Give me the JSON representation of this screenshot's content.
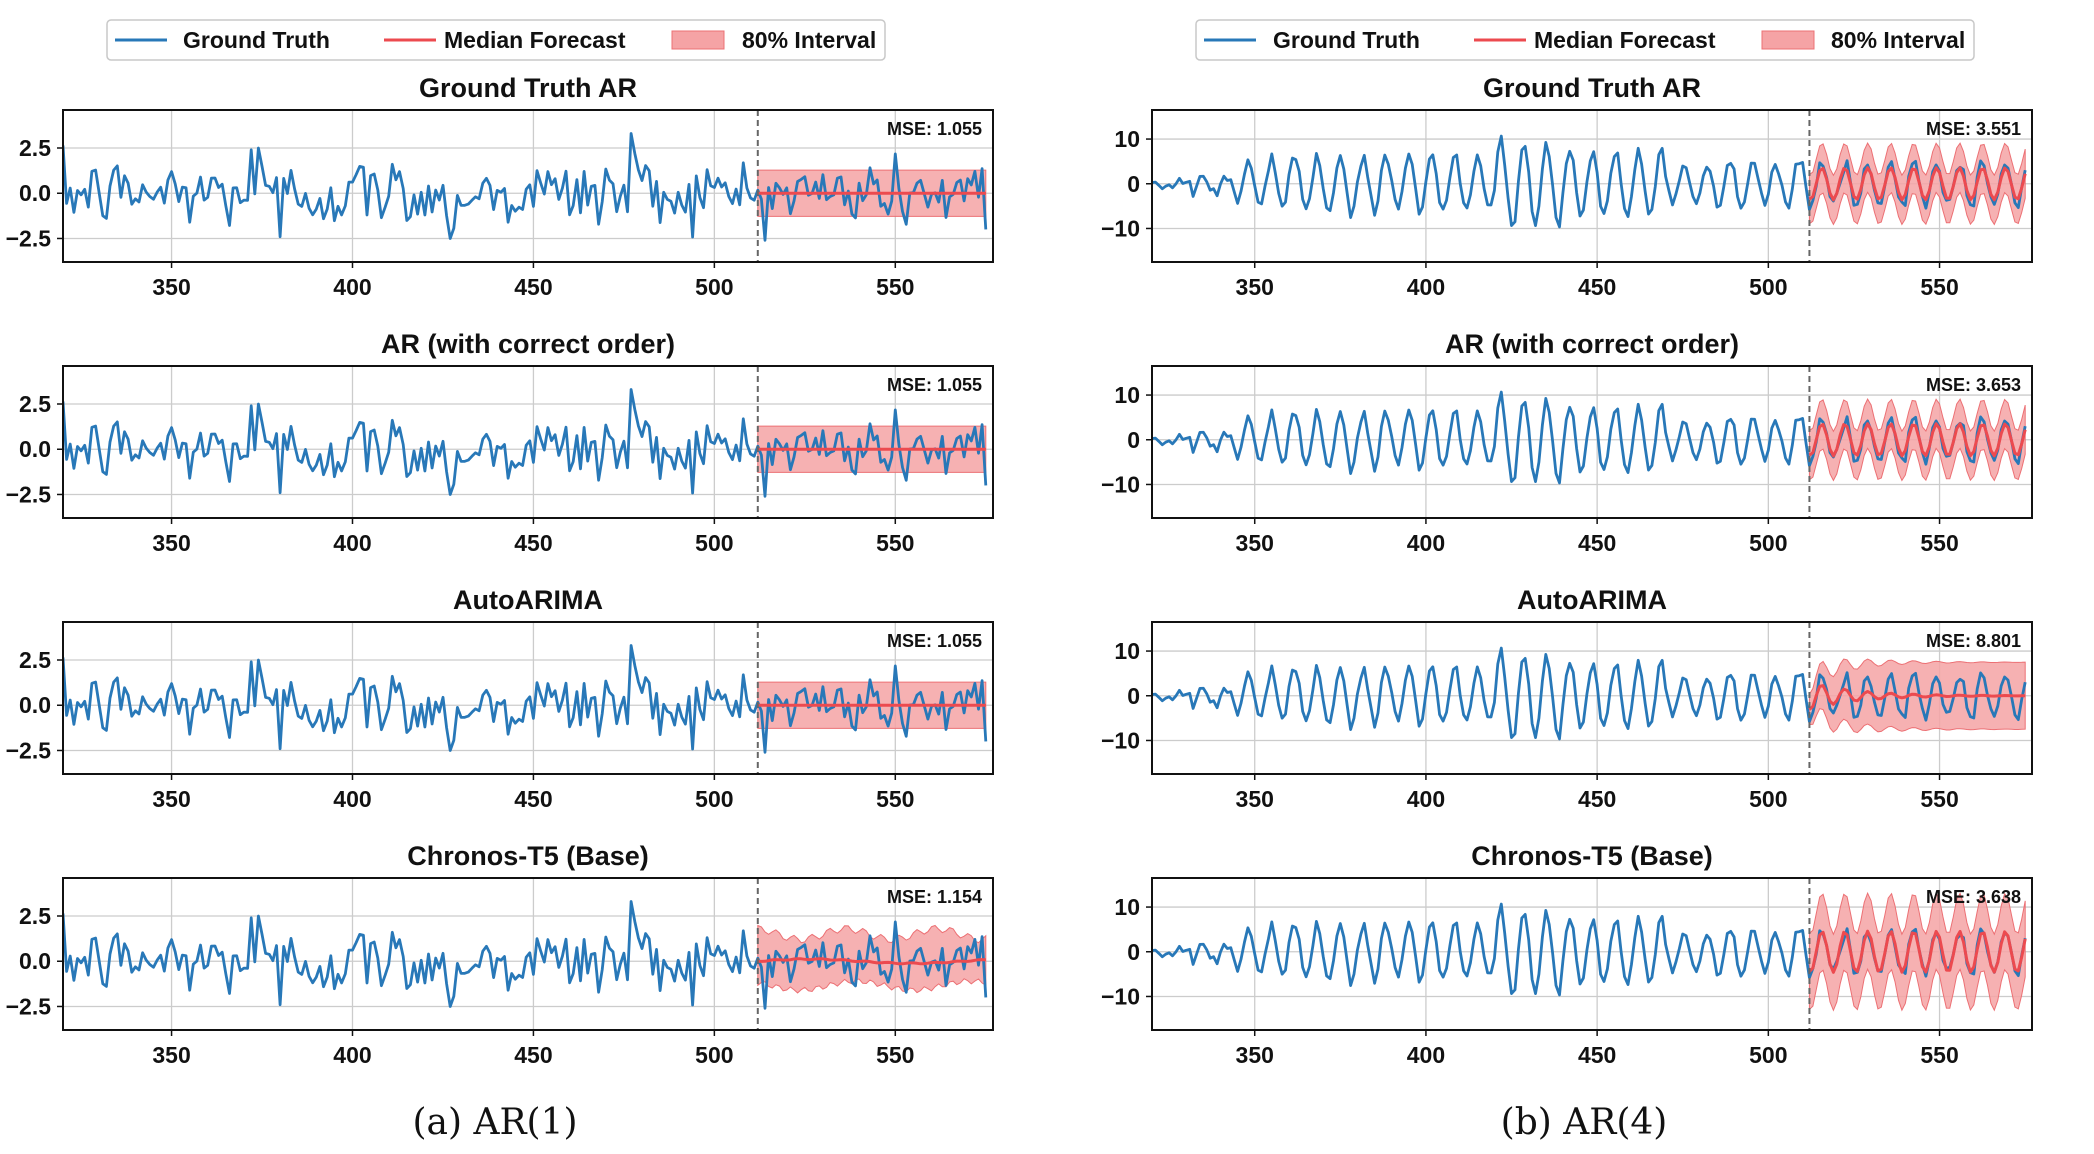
{
  "legend": {
    "ground_truth": "Ground Truth",
    "median": "Median Forecast",
    "interval": "80% Interval"
  },
  "colors": {
    "ground_truth": "#2878b8",
    "median": "#ec4a4f",
    "interval_fill": "#f5a3a5",
    "interval_edge": "#ec7074",
    "grid": "#cccccc",
    "cutoff": "#666666"
  },
  "captions": {
    "a": "(a) AR(1)",
    "b": "(b) AR(4)"
  },
  "chart_data": [
    {
      "column": "a",
      "row": 0,
      "type": "line",
      "title": "Ground Truth AR",
      "mse": "MSE: 1.055",
      "process": "ar1",
      "xlim": [
        320,
        577
      ],
      "ylim": [
        -3.8,
        4.6
      ],
      "xticks": [
        350,
        400,
        450,
        500,
        550
      ],
      "yticks": [
        2.5,
        0.0,
        -2.5
      ],
      "ytick_labels": [
        "2.5",
        "0.0",
        "−2.5"
      ],
      "cutoff": 512,
      "forecast": "flat",
      "band": [
        -1.28,
        1.28
      ]
    },
    {
      "column": "a",
      "row": 1,
      "type": "line",
      "title": "AR (with correct order)",
      "mse": "MSE: 1.055",
      "process": "ar1",
      "xlim": [
        320,
        577
      ],
      "ylim": [
        -3.8,
        4.6
      ],
      "xticks": [
        350,
        400,
        450,
        500,
        550
      ],
      "yticks": [
        2.5,
        0.0,
        -2.5
      ],
      "ytick_labels": [
        "2.5",
        "0.0",
        "−2.5"
      ],
      "cutoff": 512,
      "forecast": "flat",
      "band": [
        -1.28,
        1.28
      ]
    },
    {
      "column": "a",
      "row": 2,
      "type": "line",
      "title": "AutoARIMA",
      "mse": "MSE: 1.055",
      "process": "ar1",
      "xlim": [
        320,
        577
      ],
      "ylim": [
        -3.8,
        4.6
      ],
      "xticks": [
        350,
        400,
        450,
        500,
        550
      ],
      "yticks": [
        2.5,
        0.0,
        -2.5
      ],
      "ytick_labels": [
        "2.5",
        "0.0",
        "−2.5"
      ],
      "cutoff": 512,
      "forecast": "flat",
      "band": [
        -1.28,
        1.28
      ]
    },
    {
      "column": "a",
      "row": 3,
      "type": "line",
      "title": "Chronos-T5 (Base)",
      "mse": "MSE: 1.154",
      "process": "ar1",
      "xlim": [
        320,
        577
      ],
      "ylim": [
        -3.8,
        4.6
      ],
      "xticks": [
        350,
        400,
        450,
        500,
        550
      ],
      "yticks": [
        2.5,
        0.0,
        -2.5
      ],
      "ytick_labels": [
        "2.5",
        "0.0",
        "−2.5"
      ],
      "cutoff": 512,
      "forecast": "wavy",
      "band": [
        -1.35,
        1.5
      ]
    },
    {
      "column": "b",
      "row": 0,
      "type": "line",
      "title": "Ground Truth AR",
      "mse": "MSE: 3.551",
      "process": "ar4",
      "xlim": [
        320,
        577
      ],
      "ylim": [
        -17.5,
        16.5
      ],
      "xticks": [
        350,
        400,
        450,
        500,
        550
      ],
      "yticks": [
        10,
        0,
        -10
      ],
      "ytick_labels": [
        "10",
        "0",
        "−10"
      ],
      "cutoff": 512,
      "forecast": "oscillating",
      "band_halfwidth": 5.5
    },
    {
      "column": "b",
      "row": 1,
      "type": "line",
      "title": "AR (with correct order)",
      "mse": "MSE: 3.653",
      "process": "ar4",
      "xlim": [
        320,
        577
      ],
      "ylim": [
        -17.5,
        16.5
      ],
      "xticks": [
        350,
        400,
        450,
        500,
        550
      ],
      "yticks": [
        10,
        0,
        -10
      ],
      "ytick_labels": [
        "10",
        "0",
        "−10"
      ],
      "cutoff": 512,
      "forecast": "oscillating",
      "band_halfwidth": 5.5
    },
    {
      "column": "b",
      "row": 2,
      "type": "line",
      "title": "AutoARIMA",
      "mse": "MSE: 8.801",
      "process": "ar4",
      "xlim": [
        320,
        577
      ],
      "ylim": [
        -17.5,
        16.5
      ],
      "xticks": [
        350,
        400,
        450,
        500,
        550
      ],
      "yticks": [
        10,
        0,
        -10
      ],
      "ytick_labels": [
        "10",
        "0",
        "−10"
      ],
      "cutoff": 512,
      "forecast": "damped",
      "band_halfwidth": 7.5
    },
    {
      "column": "b",
      "row": 3,
      "type": "line",
      "title": "Chronos-T5 (Base)",
      "mse": "MSE: 3.638",
      "process": "ar4",
      "xlim": [
        320,
        577
      ],
      "ylim": [
        -17.5,
        16.5
      ],
      "xticks": [
        350,
        400,
        450,
        500,
        550
      ],
      "yticks": [
        10,
        0,
        -10
      ],
      "ytick_labels": [
        "10",
        "0",
        "−10"
      ],
      "cutoff": 512,
      "forecast": "oscillating_wide",
      "band_halfwidth": 8.5
    }
  ]
}
